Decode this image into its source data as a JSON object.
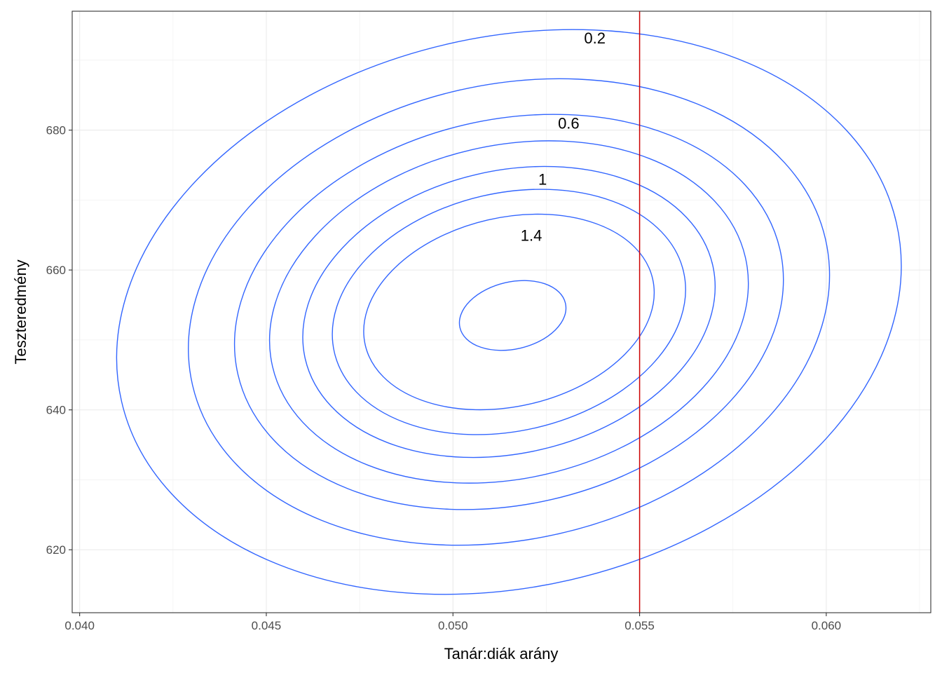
{
  "chart_data": {
    "type": "contour",
    "xlabel": "Tanár:diák arány",
    "ylabel": "Teszteredmény",
    "xlim": [
      0.0398,
      0.0628
    ],
    "ylim": [
      611,
      697
    ],
    "x_ticks": [
      {
        "value": 0.04,
        "label": "0.040"
      },
      {
        "value": 0.045,
        "label": "0.045"
      },
      {
        "value": 0.05,
        "label": "0.050"
      },
      {
        "value": 0.055,
        "label": "0.055"
      },
      {
        "value": 0.06,
        "label": "0.060"
      }
    ],
    "y_ticks": [
      {
        "value": 620,
        "label": "620"
      },
      {
        "value": 640,
        "label": "640"
      },
      {
        "value": 660,
        "label": "660"
      },
      {
        "value": 680,
        "label": "680"
      }
    ],
    "grid": true,
    "contour_color": "#3366ff",
    "contours": [
      {
        "level": 0.2,
        "label": "0.2",
        "cx": 0.0515,
        "cy": 654.0,
        "rx": 0.01065,
        "ry": 39.3,
        "label_at": [
          0.0538,
          693.2
        ]
      },
      {
        "level": 0.4,
        "label": "",
        "cx": 0.0515,
        "cy": 654.0,
        "rx": 0.0087,
        "ry": 32.5
      },
      {
        "level": 0.6,
        "label": "0.6",
        "cx": 0.0515,
        "cy": 654.0,
        "rx": 0.00745,
        "ry": 27.5,
        "label_at": [
          0.0531,
          681.0
        ]
      },
      {
        "level": 0.8,
        "label": "",
        "cx": 0.0515,
        "cy": 654.0,
        "rx": 0.0065,
        "ry": 23.8
      },
      {
        "level": 1.0,
        "label": "1",
        "cx": 0.0515,
        "cy": 654.0,
        "rx": 0.0056,
        "ry": 20.2,
        "label_at": [
          0.0524,
          673.0
        ]
      },
      {
        "level": 1.2,
        "label": "",
        "cx": 0.0515,
        "cy": 654.0,
        "rx": 0.0048,
        "ry": 17.0
      },
      {
        "level": 1.4,
        "label": "1.4",
        "cx": 0.0515,
        "cy": 654.0,
        "rx": 0.00395,
        "ry": 13.5,
        "label_at": [
          0.0521,
          665.0
        ]
      },
      {
        "level": 1.6,
        "label": "",
        "cx": 0.0516,
        "cy": 653.5,
        "rx": 0.00145,
        "ry": 4.8
      }
    ],
    "vline": {
      "x": 0.055,
      "color": "#cc0000"
    }
  }
}
